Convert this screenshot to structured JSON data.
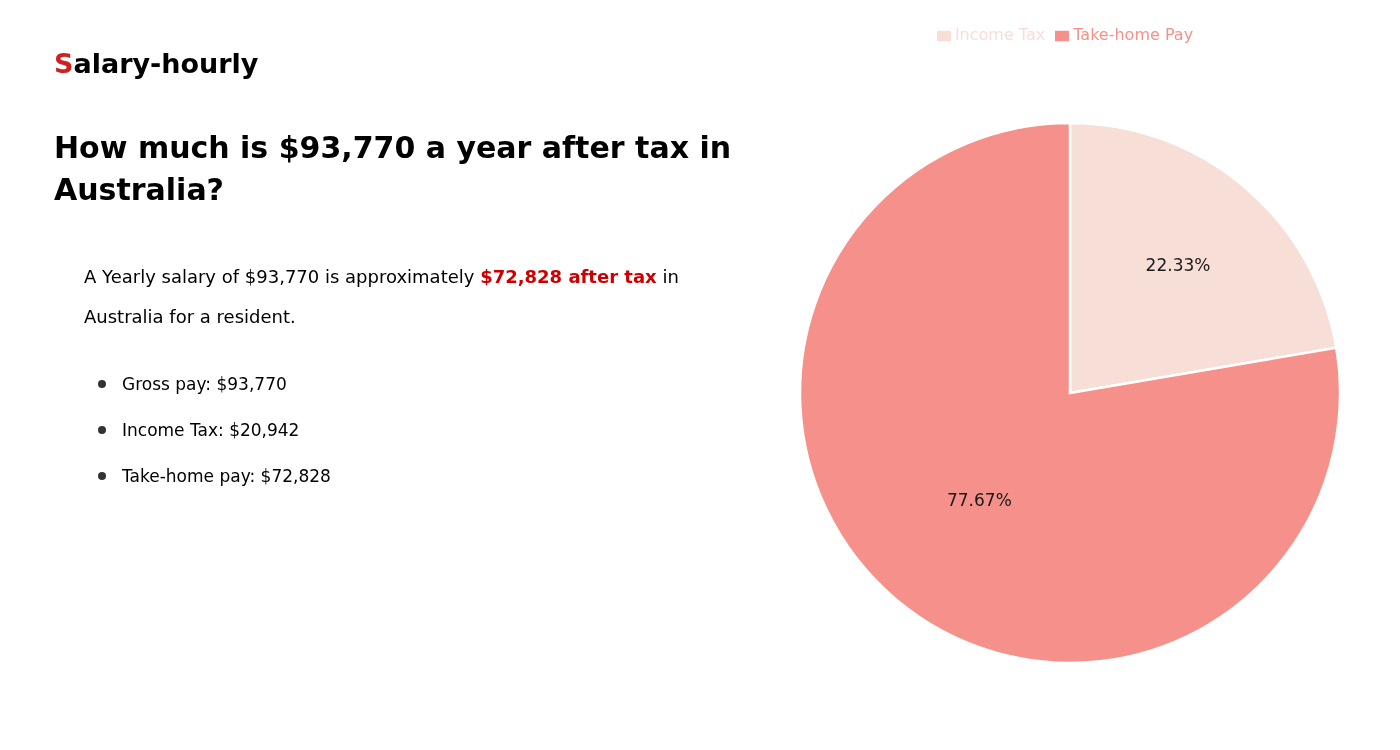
{
  "chart_data": {
    "type": "pie",
    "title": "How much is $93,770 a year after tax in\nAustralia?",
    "annotations": [
      [
        {
          "text": "S",
          "color": "#cc2222"
        },
        {
          "text": "alary-hourly"
        }
      ],
      [
        {
          "text": "A Yearly salary of $93,770 is approximately "
        },
        {
          "text": "$72,828 after tax",
          "color": "#cc0000"
        },
        {
          "text": " in"
        }
      ],
      [
        {
          "text": "Australia for a resident."
        }
      ],
      [
        {
          "text": "Gross pay: $93,770"
        }
      ],
      [
        {
          "text": "Income Tax: $20,942"
        }
      ],
      [
        {
          "text": "Take-home pay: $72,828"
        }
      ]
    ],
    "categories": [
      "Income Tax",
      "Take-home Pay"
    ],
    "values": [
      22.33,
      77.67
    ],
    "value_labels": [
      "22.33%",
      "77.67%"
    ],
    "colors": [
      "#f7dfd7",
      "#f5918a"
    ],
    "data_labels": true,
    "legend": "top"
  }
}
